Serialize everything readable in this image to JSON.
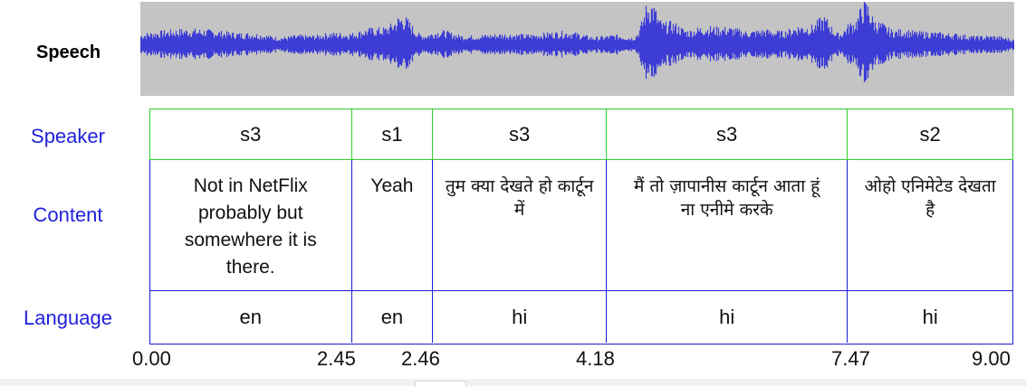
{
  "speech_label": "Speech",
  "row_labels": {
    "speaker": "Speaker",
    "content": "Content",
    "language": "Language"
  },
  "segments": [
    {
      "speaker": "s3",
      "content": "Not in NetFlix probably but somewhere it is there.",
      "language": "en"
    },
    {
      "speaker": "s1",
      "content": "Yeah",
      "language": "en"
    },
    {
      "speaker": "s3",
      "content": "तुम क्या देखते हो कार्टून में",
      "language": "hi"
    },
    {
      "speaker": "s3",
      "content": "मैं तो ज़ापानीस कार्टून आता हूं ना एनीमे करके",
      "language": "hi"
    },
    {
      "speaker": "s2",
      "content": "ओहो एनिमेटेड देखता है",
      "language": "hi"
    }
  ],
  "time_ticks": [
    "0.00",
    "2.45",
    "2.46",
    "4.18",
    "7.47",
    "9.00"
  ],
  "colors": {
    "waveform": "#3d3dd6",
    "waveform_bg": "#c4c4c4",
    "speaker_border": "#2fd02f",
    "content_border": "#1c1cd4",
    "label_text": "#1f1fdc"
  }
}
